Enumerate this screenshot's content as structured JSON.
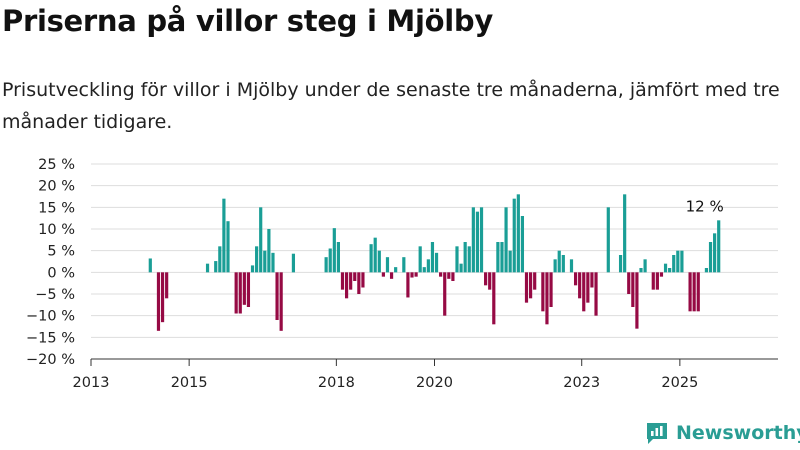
{
  "header": {
    "title": "Priserna på villor steg i Mjölby",
    "subtitle": "Prisutveckling för villor i Mjölby under de senaste tre månaderna, jämfört med tre månader tidigare."
  },
  "logo": {
    "text": "Newsworthy",
    "icon": "newsworthy-logo-icon"
  },
  "colors": {
    "positive": "#1a9e96",
    "negative": "#960a44",
    "grid": "#dddddd",
    "axis": "#333333"
  },
  "chart_data": {
    "type": "bar",
    "title": "Priserna på villor steg i Mjölby",
    "subtitle": "Prisutveckling för villor i Mjölby under de senaste tre månaderna, jämfört med tre månader tidigare.",
    "xlabel": "",
    "ylabel": "",
    "grid": true,
    "ylim": [
      -20,
      25
    ],
    "xlim": [
      "2013-01",
      "2026-12"
    ],
    "yticks": [
      -20,
      -15,
      -10,
      -5,
      0,
      5,
      10,
      15,
      20,
      25
    ],
    "ytick_labels": [
      "−20 %",
      "−15 %",
      "−10 %",
      "−5 %",
      "0 %",
      "5 %",
      "10 %",
      "15 %",
      "20 %",
      "25 %"
    ],
    "xtick_labels": [
      "2013",
      "2015",
      "2018",
      "2020",
      "2023",
      "2025"
    ],
    "xtick_dates": [
      "2013-01",
      "2015-01",
      "2018-01",
      "2020-01",
      "2023-01",
      "2025-01"
    ],
    "annotation": {
      "label": "12 %",
      "date": "2025-11"
    },
    "series": [
      {
        "values": [
          [
            "2014-03",
            3.2
          ],
          [
            "2014-05",
            -13.5
          ],
          [
            "2014-06",
            -11.5
          ],
          [
            "2014-07",
            -6
          ],
          [
            "2015-05",
            2
          ],
          [
            "2015-07",
            2.6
          ],
          [
            "2015-08",
            6
          ],
          [
            "2015-09",
            17
          ],
          [
            "2015-10",
            11.8
          ],
          [
            "2015-12",
            -9.5
          ],
          [
            "2016-01",
            -9.5
          ],
          [
            "2016-02",
            -7.5
          ],
          [
            "2016-03",
            -8
          ],
          [
            "2016-04",
            1.6
          ],
          [
            "2016-05",
            6
          ],
          [
            "2016-06",
            15
          ],
          [
            "2016-07",
            5
          ],
          [
            "2016-08",
            10
          ],
          [
            "2016-09",
            4.5
          ],
          [
            "2016-10",
            -11
          ],
          [
            "2016-11",
            -13.5
          ],
          [
            "2017-02",
            4.3
          ],
          [
            "2017-10",
            3.5
          ],
          [
            "2017-11",
            5.5
          ],
          [
            "2017-12",
            10.2
          ],
          [
            "2018-01",
            7
          ],
          [
            "2018-02",
            -4
          ],
          [
            "2018-03",
            -6
          ],
          [
            "2018-04",
            -4
          ],
          [
            "2018-05",
            -2
          ],
          [
            "2018-06",
            -5
          ],
          [
            "2018-07",
            -3.5
          ],
          [
            "2018-09",
            6.5
          ],
          [
            "2018-10",
            8
          ],
          [
            "2018-11",
            5
          ],
          [
            "2018-12",
            -1
          ],
          [
            "2019-01",
            3.5
          ],
          [
            "2019-02",
            -1.5
          ],
          [
            "2019-03",
            1.2
          ],
          [
            "2019-05",
            3.5
          ],
          [
            "2019-06",
            -5.8
          ],
          [
            "2019-07",
            -1.2
          ],
          [
            "2019-08",
            -1
          ],
          [
            "2019-09",
            6
          ],
          [
            "2019-10",
            1.2
          ],
          [
            "2019-11",
            3
          ],
          [
            "2019-12",
            7
          ],
          [
            "2020-01",
            4.5
          ],
          [
            "2020-02",
            -1
          ],
          [
            "2020-03",
            -10
          ],
          [
            "2020-04",
            -1.5
          ],
          [
            "2020-05",
            -2
          ],
          [
            "2020-06",
            6
          ],
          [
            "2020-07",
            2
          ],
          [
            "2020-08",
            7
          ],
          [
            "2020-09",
            6
          ],
          [
            "2020-10",
            15
          ],
          [
            "2020-11",
            14
          ],
          [
            "2020-12",
            15
          ],
          [
            "2021-01",
            -3
          ],
          [
            "2021-02",
            -4
          ],
          [
            "2021-03",
            -12
          ],
          [
            "2021-04",
            7
          ],
          [
            "2021-05",
            7
          ],
          [
            "2021-06",
            15
          ],
          [
            "2021-07",
            5
          ],
          [
            "2021-08",
            17
          ],
          [
            "2021-09",
            18
          ],
          [
            "2021-10",
            13
          ],
          [
            "2021-11",
            -7
          ],
          [
            "2021-12",
            -6
          ],
          [
            "2022-01",
            -4
          ],
          [
            "2022-03",
            -9
          ],
          [
            "2022-04",
            -12
          ],
          [
            "2022-05",
            -8
          ],
          [
            "2022-06",
            3
          ],
          [
            "2022-07",
            5
          ],
          [
            "2022-08",
            4
          ],
          [
            "2022-10",
            3
          ],
          [
            "2022-11",
            -3
          ],
          [
            "2022-12",
            -6
          ],
          [
            "2023-01",
            -9
          ],
          [
            "2023-02",
            -7
          ],
          [
            "2023-03",
            -3.5
          ],
          [
            "2023-04",
            -10
          ],
          [
            "2023-07",
            15
          ],
          [
            "2023-10",
            4
          ],
          [
            "2023-11",
            18
          ],
          [
            "2023-12",
            -5
          ],
          [
            "2024-01",
            -8
          ],
          [
            "2024-02",
            -13
          ],
          [
            "2024-03",
            1
          ],
          [
            "2024-04",
            3
          ],
          [
            "2024-06",
            -4
          ],
          [
            "2024-07",
            -4
          ],
          [
            "2024-08",
            -1
          ],
          [
            "2024-09",
            2
          ],
          [
            "2024-10",
            1
          ],
          [
            "2024-11",
            4
          ],
          [
            "2024-12",
            5
          ],
          [
            "2025-01",
            5
          ],
          [
            "2025-03",
            -9
          ],
          [
            "2025-04",
            -9
          ],
          [
            "2025-05",
            -9
          ],
          [
            "2025-07",
            1
          ],
          [
            "2025-08",
            7
          ],
          [
            "2025-09",
            9
          ],
          [
            "2025-10",
            12
          ]
        ]
      }
    ]
  }
}
